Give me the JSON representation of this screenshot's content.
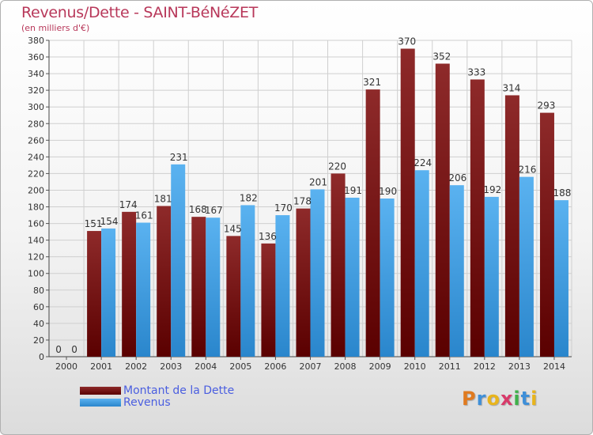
{
  "title": "Revenus/Dette - SAINT-BéNéZET",
  "subtitle": "(en milliers d'€)",
  "logo": {
    "text": "Proxiti",
    "colors": [
      "#e07a1f",
      "#3f8fd8",
      "#e8b41c",
      "#d83a6a",
      "#3fb04a",
      "#3f8fd8",
      "#e8b41c"
    ]
  },
  "colors": {
    "dette": "#7a1414",
    "revenus": "#3a9ee2",
    "title": "#b8385a",
    "legend_text": "#4a5ee0"
  },
  "chart_data": {
    "type": "bar",
    "categories": [
      "2000",
      "2001",
      "2002",
      "2003",
      "2004",
      "2005",
      "2006",
      "2007",
      "2008",
      "2009",
      "2010",
      "2011",
      "2012",
      "2013",
      "2014"
    ],
    "series": [
      {
        "name": "Montant de la Dette",
        "values": [
          0,
          151,
          174,
          181,
          168,
          145,
          136,
          178,
          220,
          321,
          370,
          352,
          333,
          314,
          293
        ]
      },
      {
        "name": "Revenus",
        "values": [
          0,
          154,
          161,
          231,
          167,
          182,
          170,
          201,
          191,
          190,
          224,
          206,
          192,
          216,
          188
        ]
      }
    ],
    "title": "Revenus/Dette - SAINT-BéNéZET",
    "ylim": [
      0,
      380
    ],
    "yticks": [
      0,
      20,
      40,
      60,
      80,
      100,
      120,
      140,
      160,
      180,
      200,
      220,
      240,
      260,
      280,
      300,
      320,
      340,
      360,
      380
    ],
    "grid": true,
    "legend": "bottom-left"
  }
}
